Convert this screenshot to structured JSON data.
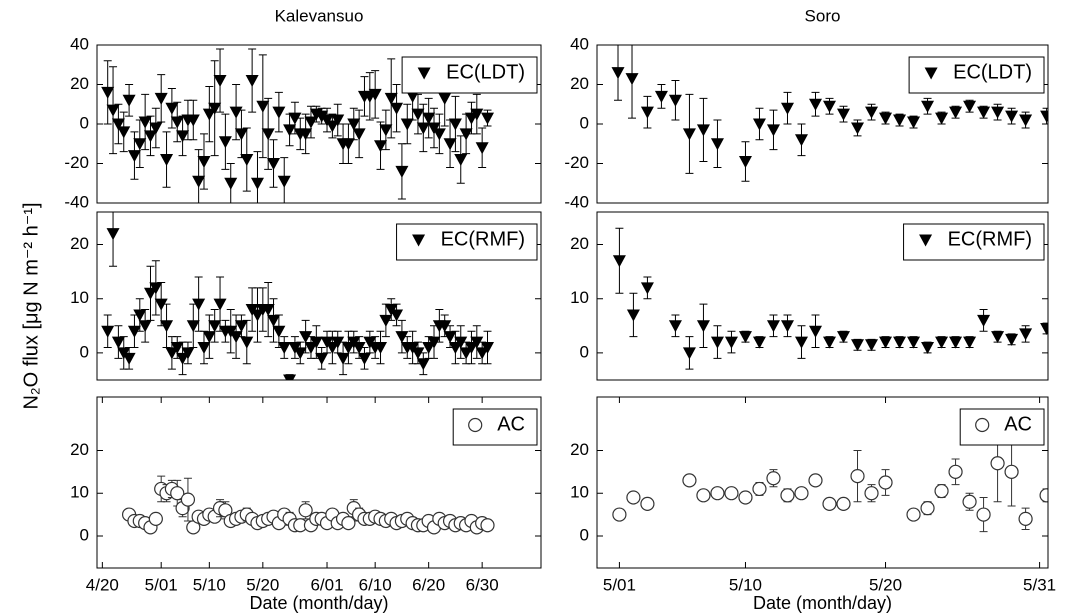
{
  "chart_data": [
    {
      "type": "scatter",
      "title": "Kalevansuo",
      "xlim": [
        109,
        192
      ],
      "ylim": [
        -40,
        40
      ],
      "yticks": [
        -40,
        -20,
        0,
        20,
        40
      ],
      "legend": "upper right",
      "series": [
        {
          "name": "EC(LDT)",
          "marker": "triangle-down",
          "color": "#000000",
          "x": [
            111,
            112,
            113,
            114,
            115,
            116,
            117,
            118,
            119,
            120,
            121,
            122,
            123,
            124,
            125,
            126,
            127,
            128,
            129,
            130,
            131,
            132,
            133,
            134,
            135,
            136,
            137,
            138,
            139,
            140,
            141,
            142,
            143,
            144,
            145,
            146,
            147,
            148,
            149,
            150,
            151,
            152,
            153,
            154,
            155,
            156,
            157,
            158,
            159,
            160,
            161,
            162,
            163,
            164,
            165,
            166,
            167,
            168,
            169,
            170,
            171,
            172,
            173,
            174,
            175,
            176,
            177,
            178,
            179,
            180,
            181,
            182
          ],
          "values": [
            16,
            7,
            0,
            -4,
            12,
            -16,
            -10,
            1,
            -6,
            -2,
            13,
            -18,
            8,
            1,
            -6,
            2,
            2,
            -29,
            -19,
            5,
            8,
            22,
            -9,
            -30,
            6,
            -5,
            -18,
            22,
            -30,
            9,
            -5,
            -20,
            6,
            -29,
            -3,
            3,
            -5,
            -5,
            1,
            5,
            4,
            2,
            -1,
            2,
            -10,
            -10,
            0,
            -5,
            14,
            14,
            15,
            -11,
            -3,
            13,
            8,
            -24,
            0,
            14,
            5,
            -2,
            3,
            -2,
            -5,
            13,
            -10,
            0,
            -18,
            -5,
            3,
            5,
            -12,
            3
          ],
          "errors": [
            16,
            22,
            10,
            10,
            8,
            12,
            12,
            14,
            10,
            10,
            12,
            14,
            10,
            10,
            10,
            10,
            10,
            16,
            14,
            14,
            24,
            16,
            14,
            10,
            14,
            12,
            16,
            16,
            16,
            26,
            18,
            12,
            10,
            12,
            8,
            8,
            8,
            10,
            8,
            4,
            4,
            6,
            6,
            8,
            10,
            10,
            8,
            12,
            10,
            12,
            12,
            12,
            10,
            20,
            12,
            14,
            10,
            12,
            10,
            12,
            10,
            10,
            10,
            14,
            12,
            14,
            12,
            10,
            8,
            10,
            10,
            4
          ]
        }
      ]
    },
    {
      "type": "scatter",
      "title": "Soro",
      "xlim": [
        119.4,
        151.6
      ],
      "ylim": [
        -40,
        40
      ],
      "yticks": [
        -40,
        -20,
        0,
        20,
        40
      ],
      "legend": "upper right",
      "series": [
        {
          "name": "EC(LDT)",
          "marker": "triangle-down",
          "color": "#000000",
          "x": [
            120.9,
            121.9,
            123,
            124,
            125,
            126,
            127,
            128,
            130,
            131,
            132,
            133,
            134,
            135,
            136,
            137,
            138,
            139,
            140,
            141,
            142,
            143,
            144,
            145,
            146,
            147,
            148,
            149,
            150,
            151.5
          ],
          "values": [
            26,
            23,
            6,
            14,
            12,
            -5,
            -3,
            -10,
            -19,
            0,
            -3,
            8,
            -8,
            10,
            9,
            5,
            -2,
            6,
            3,
            2,
            1,
            9,
            3,
            6,
            9,
            6,
            6,
            4,
            2,
            4
          ],
          "errors": [
            14,
            20,
            8,
            6,
            10,
            20,
            16,
            12,
            10,
            8,
            10,
            8,
            8,
            6,
            4,
            4,
            4,
            4,
            3,
            3,
            3,
            4,
            3,
            3,
            3,
            3,
            4,
            4,
            4,
            4
          ]
        }
      ]
    },
    {
      "type": "scatter",
      "ylabel": "N₂O flux [μg N m⁻² h⁻¹]",
      "xlim": [
        109,
        192
      ],
      "ylim": [
        -5,
        26
      ],
      "yticks": [
        0,
        10,
        20
      ],
      "legend": "upper right",
      "series": [
        {
          "name": "EC(RMF)",
          "marker": "triangle-down",
          "color": "#000000",
          "x": [
            111,
            112,
            113,
            114,
            115,
            116,
            117,
            118,
            119,
            120,
            121,
            122,
            123,
            124,
            125,
            126,
            127,
            128,
            129,
            130,
            131,
            132,
            133,
            134,
            135,
            136,
            137,
            138,
            139,
            140,
            141,
            142,
            143,
            144,
            145,
            146,
            147,
            148,
            149,
            150,
            151,
            152,
            153,
            154,
            155,
            156,
            157,
            158,
            159,
            160,
            161,
            162,
            163,
            164,
            165,
            166,
            167,
            168,
            169,
            170,
            171,
            172,
            173,
            174,
            175,
            176,
            177,
            178,
            179,
            180,
            181,
            182
          ],
          "values": [
            4,
            22,
            2,
            0,
            -1,
            4,
            7,
            5,
            11,
            12,
            9,
            5,
            0,
            1,
            -1,
            0,
            5,
            9,
            1,
            3,
            5,
            9,
            4,
            4,
            3,
            5,
            2,
            8,
            7,
            8,
            8,
            6,
            4,
            1,
            -5,
            1,
            0,
            3,
            1,
            2,
            -1,
            2,
            1,
            2,
            -1,
            1,
            2,
            1,
            -1,
            2,
            1,
            1,
            6,
            8,
            7,
            3,
            1,
            1,
            0,
            -2,
            1,
            2,
            5,
            5,
            3,
            1,
            2,
            0,
            1,
            2,
            0,
            1
          ],
          "errors": [
            3,
            6,
            3,
            3,
            2,
            3,
            3,
            3,
            5,
            5,
            4,
            4,
            3,
            2,
            3,
            2,
            4,
            5,
            3,
            4,
            3,
            5,
            2,
            4,
            4,
            2,
            4,
            4,
            5,
            4,
            5,
            4,
            3,
            2,
            1,
            2,
            2,
            3,
            2,
            3,
            2,
            2,
            3,
            2,
            3,
            3,
            2,
            2,
            2,
            2,
            2,
            3,
            3,
            2,
            2,
            3,
            2,
            3,
            2,
            2,
            2,
            3,
            3,
            2,
            2,
            3,
            3,
            2,
            3,
            3,
            2,
            3
          ]
        }
      ]
    },
    {
      "type": "scatter",
      "xlim": [
        119.4,
        151.6
      ],
      "ylim": [
        -5,
        26
      ],
      "yticks": [
        0,
        10,
        20
      ],
      "legend": "upper right",
      "series": [
        {
          "name": "EC(RMF)",
          "marker": "triangle-down",
          "color": "#000000",
          "x": [
            121,
            122,
            123,
            125,
            126,
            127,
            128,
            129,
            130,
            131,
            132,
            133,
            134,
            135,
            136,
            137,
            138,
            139,
            140,
            141,
            142,
            143,
            144,
            145,
            146,
            147,
            148,
            149,
            150,
            151.5
          ],
          "values": [
            17,
            7,
            12,
            5,
            0,
            5,
            2,
            2,
            3,
            2,
            5,
            5,
            2,
            4,
            2,
            3,
            1.5,
            1.5,
            2,
            2,
            2,
            1,
            2,
            2,
            2,
            6,
            3,
            2.5,
            3.5,
            4.5
          ],
          "errors": [
            6,
            4,
            2,
            2,
            3,
            4,
            3,
            2,
            1,
            1,
            2,
            2,
            3,
            3,
            1,
            1,
            1,
            1,
            1,
            1,
            1,
            1,
            1,
            1,
            1,
            2,
            1,
            1,
            1.5,
            1
          ]
        }
      ]
    },
    {
      "type": "scatter",
      "xlabel": "Date (month/day)",
      "xlim": [
        109,
        192
      ],
      "ylim": [
        -7.5,
        32.5
      ],
      "yticks": [
        0,
        10,
        20
      ],
      "legend": "upper right",
      "xticks": [
        {
          "value": 110,
          "label": "4/20"
        },
        {
          "value": 121,
          "label": "5/01"
        },
        {
          "value": 130,
          "label": "5/10"
        },
        {
          "value": 140,
          "label": "5/20"
        },
        {
          "value": 152,
          "label": "6/01"
        },
        {
          "value": 161,
          "label": "6/10"
        },
        {
          "value": 171,
          "label": "6/20"
        },
        {
          "value": 181,
          "label": "6/30"
        }
      ],
      "series": [
        {
          "name": "AC",
          "marker": "circle-open",
          "color": "#333333",
          "x": [
            115,
            116,
            117,
            118,
            119,
            120,
            121,
            122,
            123,
            124,
            125,
            126,
            127,
            128,
            129,
            130,
            131,
            132,
            133,
            134,
            135,
            136,
            137,
            138,
            139,
            140,
            141,
            142,
            143,
            144,
            145,
            146,
            147,
            148,
            149,
            150,
            151,
            152,
            153,
            154,
            155,
            156,
            157,
            158,
            159,
            160,
            161,
            162,
            163,
            164,
            165,
            166,
            167,
            168,
            169,
            170,
            171,
            172,
            173,
            174,
            175,
            176,
            177,
            178,
            179,
            180,
            181,
            182
          ],
          "values": [
            5,
            3.5,
            3.5,
            3,
            2,
            4,
            11,
            10,
            11,
            10,
            6.5,
            8.5,
            2,
            4.5,
            4,
            5,
            4.5,
            6.5,
            6,
            3.5,
            4,
            4.5,
            5,
            4,
            3,
            3.5,
            4,
            4.5,
            3,
            5,
            4,
            2.5,
            2.5,
            6,
            2.5,
            4,
            4,
            3,
            5,
            3,
            4,
            3,
            6.5,
            5,
            4,
            4,
            4.5,
            4,
            3.5,
            4,
            3,
            3.5,
            4,
            3,
            2.5,
            2.5,
            3.5,
            2,
            4,
            3,
            3.5,
            2.5,
            3,
            2.5,
            3.5,
            2,
            3,
            2.5
          ],
          "errors": [
            1,
            1,
            1,
            1,
            1,
            1,
            3,
            2,
            2,
            3,
            2,
            5,
            1,
            1,
            1,
            1,
            1,
            2,
            2,
            1,
            1,
            1,
            1.5,
            1,
            1,
            1,
            1,
            1,
            1,
            1,
            1.5,
            1,
            1,
            2,
            1,
            1,
            1,
            1,
            1,
            1,
            1,
            1,
            2,
            1.5,
            1,
            1,
            1,
            1,
            1,
            1,
            1,
            1,
            1,
            1,
            1,
            1,
            1,
            1,
            1,
            1,
            1,
            1,
            1,
            1,
            1,
            1,
            1,
            1
          ]
        }
      ]
    },
    {
      "type": "scatter",
      "xlabel": "Date (month/day)",
      "xlim": [
        119.4,
        151.6
      ],
      "ylim": [
        -7.5,
        32.5
      ],
      "yticks": [
        0,
        10,
        20
      ],
      "legend": "upper right",
      "xticks": [
        {
          "value": 121,
          "label": "5/01"
        },
        {
          "value": 130,
          "label": "5/10"
        },
        {
          "value": 140,
          "label": "5/20"
        },
        {
          "value": 151,
          "label": "5/31"
        }
      ],
      "series": [
        {
          "name": "AC",
          "marker": "circle-open",
          "color": "#333333",
          "x": [
            121,
            122,
            123,
            126,
            127,
            128,
            129,
            130,
            131,
            132,
            133,
            134,
            135,
            136,
            137,
            138,
            139,
            140,
            142,
            143,
            144,
            145,
            146,
            147,
            148,
            149,
            150,
            151.5
          ],
          "values": [
            5,
            9,
            7.5,
            13,
            9.5,
            10,
            10,
            9,
            11,
            13.5,
            9.5,
            10,
            13,
            7.5,
            7.5,
            14,
            10,
            12.5,
            5,
            6.5,
            10.5,
            15,
            8,
            5,
            17,
            15,
            4,
            9.5
          ],
          "errors": [
            1,
            0.5,
            0.5,
            0.5,
            0.5,
            0.5,
            0.5,
            0.5,
            1.5,
            2,
            1.5,
            0.5,
            0.5,
            1,
            0.5,
            6,
            2,
            3,
            0.5,
            1.5,
            1.5,
            3,
            2,
            4,
            9,
            8,
            2.5,
            1.5
          ]
        }
      ]
    }
  ]
}
